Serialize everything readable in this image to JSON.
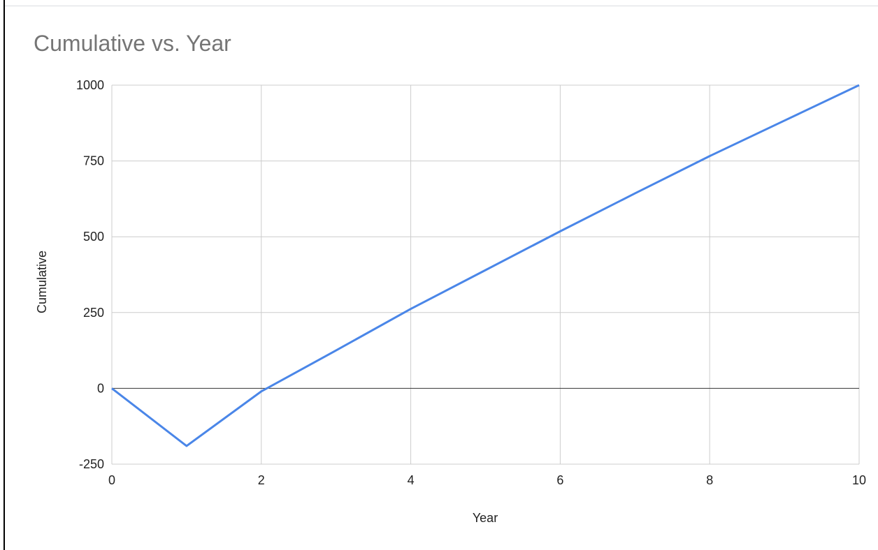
{
  "chart_data": {
    "type": "line",
    "title": "Cumulative vs. Year",
    "xlabel": "Year",
    "ylabel": "Cumulative",
    "xlim": [
      0,
      10
    ],
    "ylim": [
      -250,
      1000
    ],
    "xticks": [
      0,
      2,
      4,
      6,
      8,
      10
    ],
    "yticks": [
      -250,
      0,
      250,
      500,
      750,
      1000
    ],
    "grid": true,
    "legend": "none",
    "series": [
      {
        "color": "#4a86e8",
        "x": [
          0,
          1,
          2,
          3,
          4,
          5,
          6,
          7,
          8,
          9,
          10
        ],
        "y": [
          0,
          -190,
          -10,
          125,
          262,
          390,
          518,
          643,
          766,
          883,
          1000
        ]
      }
    ]
  }
}
